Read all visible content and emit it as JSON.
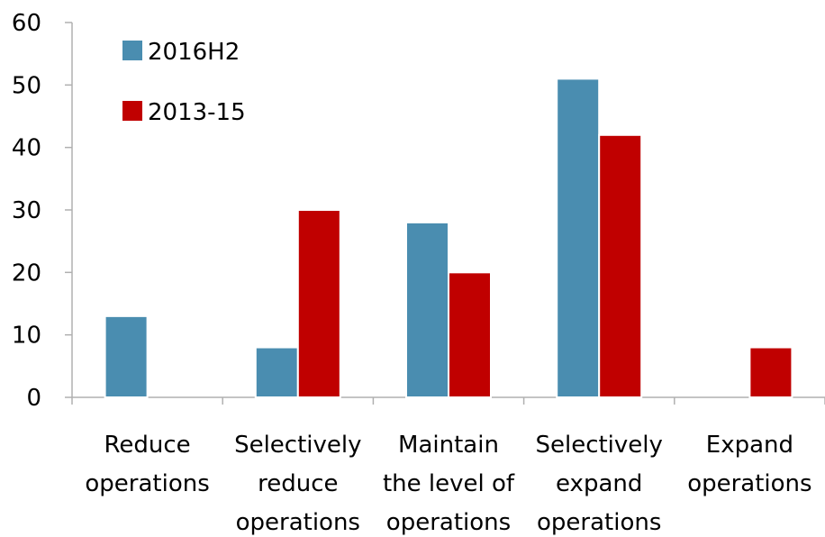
{
  "chart_data": {
    "type": "bar",
    "categories": [
      [
        "Reduce",
        "operations"
      ],
      [
        "Selectively",
        "reduce",
        "operations"
      ],
      [
        "Maintain",
        "the level of",
        "operations"
      ],
      [
        "Selectively",
        "expand",
        "operations"
      ],
      [
        "Expand",
        "operations"
      ]
    ],
    "series": [
      {
        "name": "2016H2",
        "color": "#4a8db0",
        "values": [
          13,
          8,
          28,
          51,
          0
        ]
      },
      {
        "name": "2013-15",
        "color": "#c00000",
        "values": [
          0,
          30,
          20,
          42,
          8
        ]
      }
    ],
    "ylim": [
      0,
      60
    ],
    "yticks": [
      0,
      10,
      20,
      30,
      40,
      50,
      60
    ],
    "grid": false,
    "legend_position": "top-left",
    "title": "",
    "xlabel": "",
    "ylabel": ""
  }
}
